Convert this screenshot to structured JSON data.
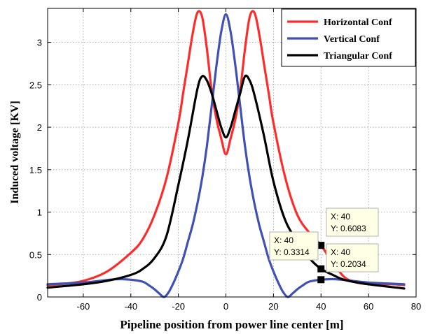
{
  "chart_data": {
    "type": "line",
    "title": "",
    "xlabel": "Pipeline position from power line center [m]",
    "ylabel": "Induced voltage [KV]",
    "xlim": [
      -75,
      80
    ],
    "ylim": [
      0,
      3.4
    ],
    "xticks": [
      -60,
      -40,
      -20,
      0,
      20,
      40,
      60,
      80
    ],
    "yticks": [
      0,
      0.5,
      1,
      1.5,
      2,
      2.5,
      3
    ],
    "xtick_labels": [
      "-60",
      "-40",
      "-20",
      "0",
      "20",
      "40",
      "60",
      "80"
    ],
    "ytick_labels": [
      "0",
      "0.5",
      "1",
      "1.5",
      "2",
      "2.5",
      "3"
    ],
    "grid": true,
    "legend_position": "top-right",
    "series": [
      {
        "name": "Horizontal Conf",
        "color": "#ff2a2a",
        "x": [
          -75,
          -70,
          -60,
          -50,
          -40,
          -35,
          -30,
          -25,
          -20,
          -18,
          -16,
          -14,
          -12,
          -10,
          -8,
          -6,
          -4,
          -2,
          0,
          2,
          4,
          6,
          8,
          10,
          12,
          14,
          16,
          18,
          20,
          25,
          30,
          35,
          40,
          45,
          50,
          55,
          60,
          65,
          70,
          75
        ],
        "y": [
          0.14,
          0.15,
          0.19,
          0.3,
          0.52,
          0.68,
          0.97,
          1.4,
          2.05,
          2.4,
          2.75,
          3.1,
          3.35,
          3.3,
          2.92,
          2.43,
          2.1,
          1.87,
          1.68,
          1.87,
          2.1,
          2.43,
          2.92,
          3.3,
          3.35,
          3.1,
          2.75,
          2.4,
          2.05,
          1.4,
          0.97,
          0.76,
          0.6083,
          0.4,
          0.23,
          0.17,
          0.15,
          0.15,
          0.15,
          0.14
        ]
      },
      {
        "name": "Vertical Conf",
        "color": "#3f51b5",
        "x": [
          -75,
          -60,
          -50,
          -45,
          -40,
          -35,
          -32,
          -30,
          -28,
          -26,
          -24,
          -22,
          -20,
          -18,
          -16,
          -14,
          -12,
          -10,
          -8,
          -6,
          -4,
          -2,
          0,
          2,
          4,
          6,
          8,
          10,
          12,
          14,
          16,
          18,
          20,
          22,
          24,
          26,
          28,
          30,
          32,
          35,
          40,
          45,
          50,
          60,
          75
        ],
        "y": [
          0.15,
          0.17,
          0.2,
          0.21,
          0.2034,
          0.18,
          0.13,
          0.09,
          0.04,
          0.0,
          0.06,
          0.17,
          0.3,
          0.45,
          0.65,
          0.85,
          1.1,
          1.4,
          1.78,
          2.25,
          2.72,
          3.12,
          3.33,
          3.12,
          2.72,
          2.25,
          1.78,
          1.4,
          1.1,
          0.85,
          0.65,
          0.45,
          0.3,
          0.17,
          0.06,
          0.0,
          0.04,
          0.09,
          0.13,
          0.18,
          0.2034,
          0.21,
          0.2,
          0.17,
          0.15
        ]
      },
      {
        "name": "Triangular Conf",
        "color": "#000000",
        "x": [
          -75,
          -60,
          -50,
          -40,
          -35,
          -30,
          -25,
          -20,
          -16,
          -12,
          -10,
          -8,
          -6,
          -4,
          -2,
          0,
          2,
          4,
          6,
          8,
          10,
          12,
          16,
          20,
          25,
          30,
          35,
          40,
          45,
          50,
          60,
          75
        ],
        "y": [
          0.11,
          0.15,
          0.19,
          0.26,
          0.33,
          0.46,
          0.72,
          1.32,
          1.85,
          2.45,
          2.6,
          2.55,
          2.4,
          2.2,
          2.0,
          1.88,
          2.0,
          2.2,
          2.4,
          2.6,
          2.55,
          2.38,
          1.9,
          1.36,
          0.9,
          0.66,
          0.46,
          0.3314,
          0.26,
          0.2,
          0.15,
          0.1
        ]
      }
    ],
    "datatips": [
      {
        "x": 40,
        "y": 0.6083,
        "xlabel": "X: 40",
        "ylabel": "Y: 0.6083"
      },
      {
        "x": 40,
        "y": 0.3314,
        "xlabel": "X: 40",
        "ylabel": "Y: 0.3314"
      },
      {
        "x": 40,
        "y": 0.2034,
        "xlabel": "X: 40",
        "ylabel": "Y: 0.2034"
      }
    ]
  }
}
